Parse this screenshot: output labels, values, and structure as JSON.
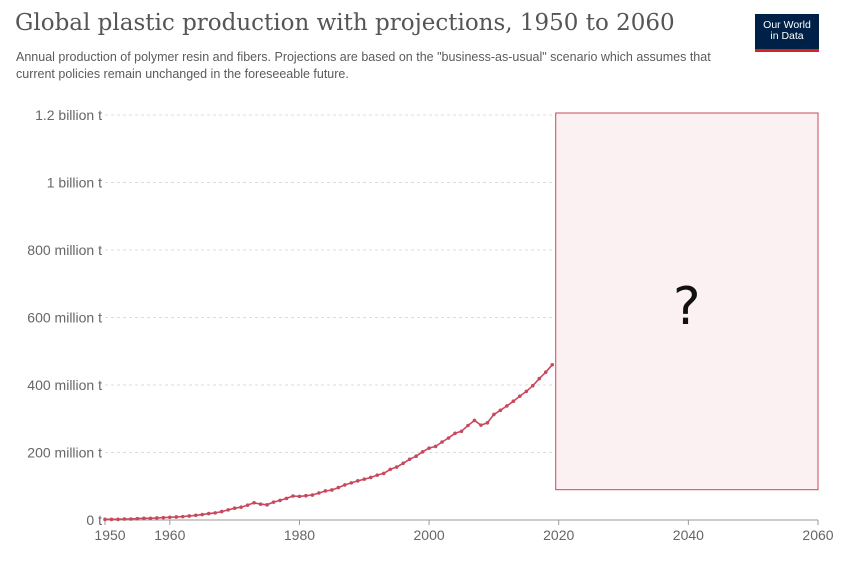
{
  "title": "Global plastic production with projections, 1950 to 2060",
  "subtitle": "Annual production of polymer resin and fibers. Projections are based on the \"business-as-usual\" scenario which assumes that current policies remain unchanged in the foreseeable future.",
  "logo": {
    "line1": "Our World",
    "line2": "in Data",
    "bg_color": "#002147",
    "accent_color": "#ce261e"
  },
  "overlay": {
    "text": "?",
    "fill_color": "#fbf1f3",
    "border_color": "#c8485d"
  },
  "chart_data": {
    "type": "line",
    "title": "Global plastic production with projections, 1950 to 2060",
    "xlabel": "",
    "ylabel": "",
    "xlim": [
      1950,
      2060
    ],
    "ylim": [
      0,
      1200000000
    ],
    "x_ticks": [
      1950,
      1960,
      1980,
      2000,
      2020,
      2040,
      2060
    ],
    "x_tick_labels": [
      "1950",
      "1960",
      "1980",
      "2000",
      "2020",
      "2040",
      "2060"
    ],
    "y_ticks": [
      0,
      200000000,
      400000000,
      600000000,
      800000000,
      1000000000,
      1200000000
    ],
    "y_tick_labels": [
      "0 t",
      "200 million t",
      "400 million t",
      "600 million t",
      "800 million t",
      "1 billion t",
      "1.2 billion t"
    ],
    "grid": "horizontal dashed",
    "series": [
      {
        "color": "#c8485d",
        "x": [
          1950,
          1951,
          1952,
          1953,
          1954,
          1955,
          1956,
          1957,
          1958,
          1959,
          1960,
          1961,
          1962,
          1963,
          1964,
          1965,
          1966,
          1967,
          1968,
          1969,
          1970,
          1971,
          1972,
          1973,
          1974,
          1975,
          1976,
          1977,
          1978,
          1979,
          1980,
          1981,
          1982,
          1983,
          1984,
          1985,
          1986,
          1987,
          1988,
          1989,
          1990,
          1991,
          1992,
          1993,
          1994,
          1995,
          1996,
          1997,
          1998,
          1999,
          2000,
          2001,
          2002,
          2003,
          2004,
          2005,
          2006,
          2007,
          2008,
          2009,
          2010,
          2011,
          2012,
          2013,
          2014,
          2015,
          2016,
          2017,
          2018,
          2019
        ],
        "values": [
          2000000,
          2000000,
          2000000,
          3000000,
          3000000,
          4000000,
          5000000,
          5000000,
          6000000,
          7000000,
          8000000,
          9000000,
          10000000,
          12000000,
          14000000,
          16000000,
          19000000,
          21000000,
          25000000,
          30000000,
          35000000,
          38000000,
          44000000,
          51000000,
          47000000,
          45000000,
          53000000,
          58000000,
          64000000,
          71000000,
          70000000,
          72000000,
          74000000,
          80000000,
          86000000,
          89000000,
          96000000,
          104000000,
          110000000,
          116000000,
          121000000,
          126000000,
          133000000,
          138000000,
          150000000,
          157000000,
          168000000,
          180000000,
          189000000,
          202000000,
          213000000,
          218000000,
          231000000,
          243000000,
          257000000,
          263000000,
          280000000,
          295000000,
          281000000,
          288000000,
          313000000,
          325000000,
          338000000,
          352000000,
          367000000,
          381000000,
          398000000,
          419000000,
          438000000,
          460000000
        ]
      }
    ],
    "hidden_region": {
      "x_from": 2020,
      "x_to": 2060
    }
  }
}
